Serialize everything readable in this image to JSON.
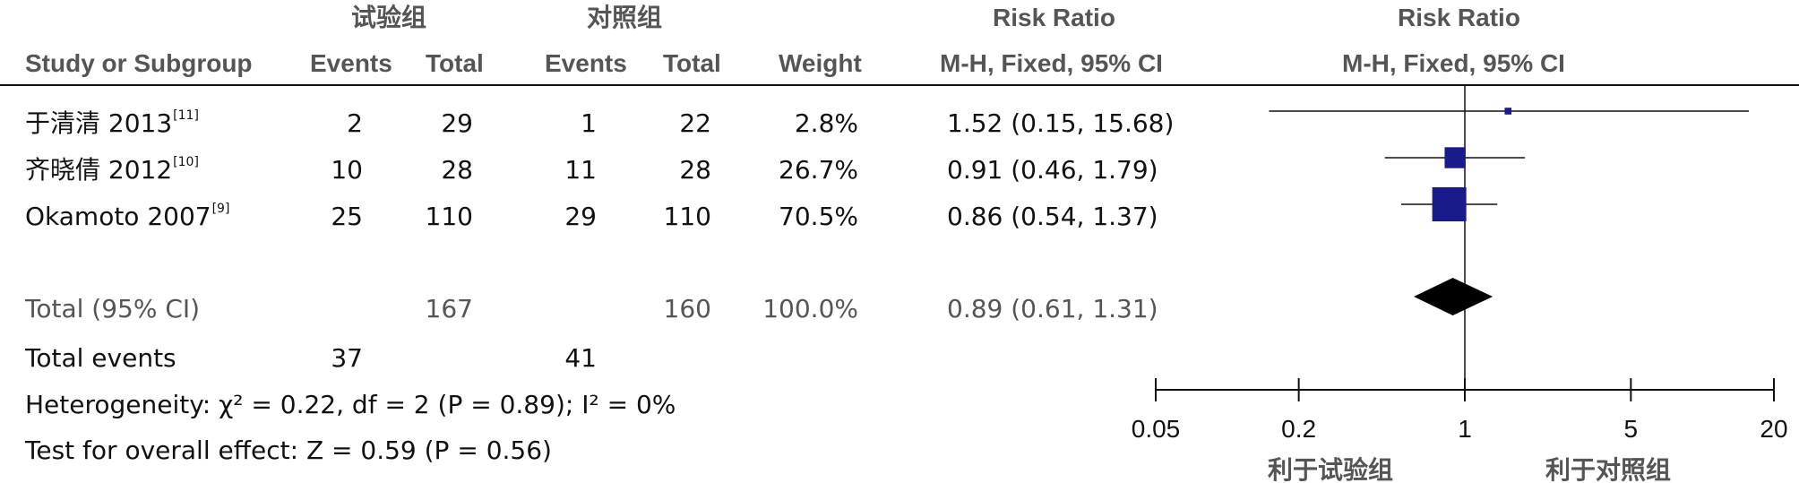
{
  "header": {
    "group_exp": "试验组",
    "group_ctrl": "对照组",
    "rr_title": "Risk Ratio",
    "rr_plot_title": "Risk Ratio",
    "col_study": "Study or Subgroup",
    "col_events_exp": "Events",
    "col_total_exp": "Total",
    "col_events_ctrl": "Events",
    "col_total_ctrl": "Total",
    "col_weight": "Weight",
    "col_method": "M-H, Fixed, 95% CI",
    "col_method_plot": "M-H, Fixed, 95% CI"
  },
  "studies": [
    {
      "name": "于清清 2013",
      "ref": "[11]",
      "events_exp": "2",
      "total_exp": "29",
      "events_ctrl": "1",
      "total_ctrl": "22",
      "weight": "2.8%",
      "ci_text": "1.52 (0.15, 15.68)"
    },
    {
      "name": "齐晓倩 2012",
      "ref": "[10]",
      "events_exp": "10",
      "total_exp": "28",
      "events_ctrl": "11",
      "total_ctrl": "28",
      "weight": "26.7%",
      "ci_text": "0.91 (0.46, 1.79)"
    },
    {
      "name": "Okamoto 2007",
      "ref": "[9]",
      "events_exp": "25",
      "total_exp": "110",
      "events_ctrl": "29",
      "total_ctrl": "110",
      "weight": "70.5%",
      "ci_text": "0.86 (0.54, 1.37)"
    }
  ],
  "total": {
    "label": "Total (95% CI)",
    "total_exp": "167",
    "total_ctrl": "160",
    "weight": "100.0%",
    "ci_text": "0.89 (0.61, 1.31)"
  },
  "total_events": {
    "label": "Total events",
    "exp": "37",
    "ctrl": "41"
  },
  "heterogeneity": "Heterogeneity: χ² = 0.22, df = 2 (P = 0.89); I² = 0%",
  "overall_effect": "Test for overall effect: Z = 0.59 (P = 0.56)",
  "axis": {
    "favours_left": "利于试验组",
    "favours_right": "利于对照组"
  },
  "colors": {
    "marker": "#1a1a8c",
    "diamond": "#000000",
    "line": "#111111"
  },
  "chart_data": {
    "type": "forest",
    "scale": "log",
    "xlim": [
      0.05,
      20
    ],
    "ticks": [
      0.05,
      0.2,
      1,
      5,
      20
    ],
    "tick_labels": [
      "0.05",
      "0.2",
      "1",
      "5",
      "20"
    ],
    "reference": 1,
    "studies": [
      {
        "rr": 1.52,
        "lo": 0.15,
        "hi": 15.68,
        "weight": 2.8
      },
      {
        "rr": 0.91,
        "lo": 0.46,
        "hi": 1.79,
        "weight": 26.7
      },
      {
        "rr": 0.86,
        "lo": 0.54,
        "hi": 1.37,
        "weight": 70.5
      }
    ],
    "pooled": {
      "rr": 0.89,
      "lo": 0.61,
      "hi": 1.31
    }
  }
}
